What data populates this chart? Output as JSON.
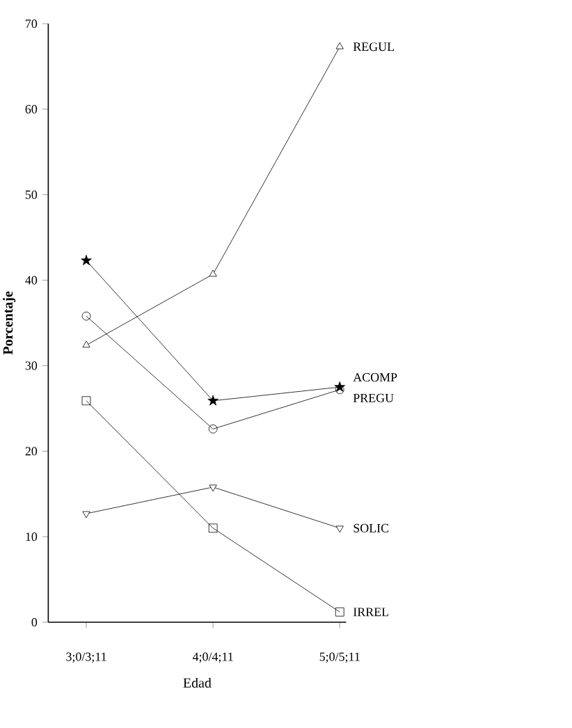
{
  "chart_data": {
    "type": "line",
    "xlabel": "Edad",
    "ylabel": "Porcentaje",
    "categories": [
      "3;0/3;11",
      "4;0/4;11",
      "5;0/5;11"
    ],
    "ylim": [
      0,
      70
    ],
    "yticks": [
      0,
      10,
      20,
      30,
      40,
      50,
      60,
      70
    ],
    "grid": false,
    "series": [
      {
        "name": "REGUL",
        "color": "#000000",
        "marker": "triangle",
        "values": [
          32.4,
          40.7,
          67.3
        ]
      },
      {
        "name": "ACOMP",
        "color": "#000000",
        "marker": "star",
        "values": [
          42.3,
          25.9,
          27.5
        ]
      },
      {
        "name": "PREGU",
        "color": "#000000",
        "marker": "circle",
        "values": [
          35.8,
          22.6,
          27.2
        ]
      },
      {
        "name": "SOLIC",
        "color": "#000000",
        "marker": "triangle down",
        "values": [
          12.7,
          15.8,
          11
        ]
      },
      {
        "name": "IRREL",
        "color": "#000000",
        "marker": "square",
        "values": [
          25.9,
          11,
          1.2
        ]
      }
    ]
  }
}
